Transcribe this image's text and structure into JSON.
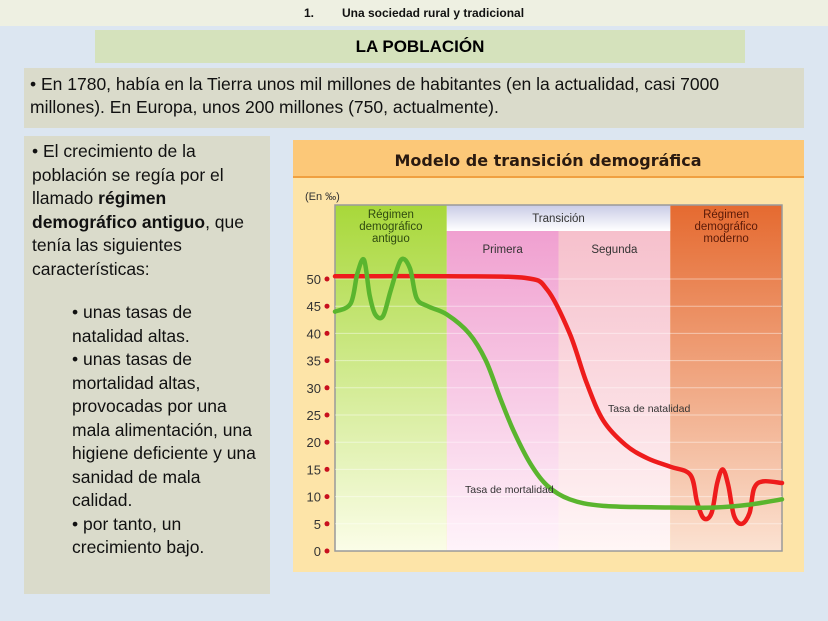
{
  "header": {
    "number": "1.",
    "section": "Una sociedad rural y tradicional"
  },
  "title": "LA POBLACIÓN",
  "intro": "• En 1780, había en la Tierra unos mil millones de habitantes (en la actualidad, casi 7000 millones). En Europa, unos 200 millones (750, actualmente).",
  "left": {
    "p_before": "• El crecimiento de la población se regía por el llamado ",
    "p_bold": "régimen demográfico antiguo",
    "p_after": ", que tenía las siguientes características:",
    "items": [
      "• unas tasas de natalidad altas.",
      "• unas tasas de mortalidad altas, provocadas por una mala alimentación, una higiene deficiente y una sanidad de mala calidad.",
      "• por tanto, un crecimiento bajo."
    ]
  },
  "chart_data": {
    "type": "line",
    "title": "Modelo de transición demográfica",
    "ylabel": "(En ‰)",
    "ylim": [
      0,
      50
    ],
    "yticks": [
      0,
      5,
      10,
      15,
      20,
      25,
      30,
      35,
      40,
      45,
      50
    ],
    "xlim": [
      0,
      40
    ],
    "phases": [
      {
        "label": "Régimen demográfico antiguo",
        "range": [
          0,
          10
        ],
        "color": "#b5e05a"
      },
      {
        "label": "Primera",
        "group": "Transición",
        "range": [
          10,
          20
        ],
        "color": "#f2a8d4"
      },
      {
        "label": "Segunda",
        "group": "Transición",
        "range": [
          20,
          30
        ],
        "color": "#f7c8cf"
      },
      {
        "label": "Régimen demográfico moderno",
        "range": [
          30,
          40
        ],
        "color": "#e8733a"
      }
    ],
    "transition_label": "Transición",
    "series": [
      {
        "name": "Tasa de natalidad",
        "color": "#ee1c1c",
        "points": [
          [
            0,
            50.5
          ],
          [
            10,
            50.5
          ],
          [
            17,
            50.2
          ],
          [
            19,
            48
          ],
          [
            21,
            40
          ],
          [
            22.5,
            31
          ],
          [
            24,
            24
          ],
          [
            26,
            19.5
          ],
          [
            28,
            17
          ],
          [
            30,
            15.5
          ],
          [
            31.8,
            14
          ],
          [
            32.4,
            9
          ],
          [
            33,
            6
          ],
          [
            33.7,
            7
          ],
          [
            34.2,
            12.5
          ],
          [
            34.7,
            15
          ],
          [
            35.2,
            12
          ],
          [
            35.7,
            6.5
          ],
          [
            36.4,
            5
          ],
          [
            37.1,
            7
          ],
          [
            37.5,
            11.5
          ],
          [
            38.3,
            12.8
          ],
          [
            40,
            12.5
          ]
        ]
      },
      {
        "name": "Tasa de mortalidad",
        "color": "#5ab52e",
        "points": [
          [
            0,
            44
          ],
          [
            1.4,
            45.5
          ],
          [
            2,
            51
          ],
          [
            2.6,
            53.5
          ],
          [
            3.1,
            47
          ],
          [
            3.6,
            43.5
          ],
          [
            4.3,
            43.2
          ],
          [
            5,
            48
          ],
          [
            5.9,
            53.5
          ],
          [
            6.7,
            52
          ],
          [
            7.3,
            46.5
          ],
          [
            8.3,
            45
          ],
          [
            10,
            43.5
          ],
          [
            12,
            40
          ],
          [
            13.5,
            35
          ],
          [
            14.8,
            28
          ],
          [
            16,
            22
          ],
          [
            17.5,
            16
          ],
          [
            19,
            12
          ],
          [
            21,
            9.5
          ],
          [
            24,
            8.3
          ],
          [
            30,
            8
          ],
          [
            34,
            8
          ],
          [
            37,
            8.5
          ],
          [
            40,
            9.5
          ]
        ]
      }
    ]
  }
}
